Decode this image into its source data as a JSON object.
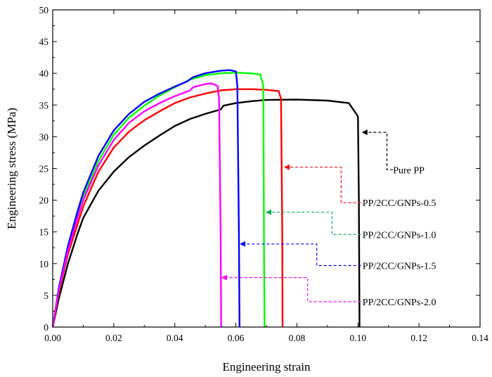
{
  "chart_data": {
    "type": "line",
    "title": "",
    "xlabel": "Engineering strain",
    "ylabel": "Engineering stress (MPa)",
    "xlim": [
      0.0,
      0.14
    ],
    "ylim": [
      0,
      50
    ],
    "x_ticks": [
      "0.00",
      "0.02",
      "0.04",
      "0.06",
      "0.08",
      "0.10",
      "0.12",
      "0.14"
    ],
    "y_ticks": [
      "0",
      "5",
      "10",
      "15",
      "20",
      "25",
      "30",
      "35",
      "40",
      "45",
      "50"
    ],
    "grid": false,
    "legend_position": "right, inside plot with dashed leader arrows",
    "series": [
      {
        "name": "Pure PP",
        "color": "#000000",
        "points": [
          [
            0,
            0
          ],
          [
            0.002,
            4.5
          ],
          [
            0.005,
            10
          ],
          [
            0.008,
            14.5
          ],
          [
            0.01,
            17.2
          ],
          [
            0.015,
            21.5
          ],
          [
            0.02,
            24.5
          ],
          [
            0.025,
            26.8
          ],
          [
            0.03,
            28.6
          ],
          [
            0.035,
            30.2
          ],
          [
            0.04,
            31.7
          ],
          [
            0.045,
            32.8
          ],
          [
            0.05,
            33.6
          ],
          [
            0.055,
            34.3
          ],
          [
            0.056,
            34.9
          ],
          [
            0.06,
            35.3
          ],
          [
            0.065,
            35.6
          ],
          [
            0.07,
            35.8
          ],
          [
            0.08,
            35.85
          ],
          [
            0.09,
            35.7
          ],
          [
            0.097,
            35.3
          ],
          [
            0.1,
            33.2
          ],
          [
            0.1003,
            20
          ],
          [
            0.1005,
            0
          ]
        ]
      },
      {
        "name": "PP/2CC/GNPs-0.5",
        "color": "#ff0000",
        "points": [
          [
            0,
            0
          ],
          [
            0.002,
            5.5
          ],
          [
            0.005,
            11.5
          ],
          [
            0.008,
            16
          ],
          [
            0.01,
            19
          ],
          [
            0.015,
            24.5
          ],
          [
            0.02,
            28.3
          ],
          [
            0.025,
            30.8
          ],
          [
            0.03,
            32.6
          ],
          [
            0.035,
            34
          ],
          [
            0.04,
            35.3
          ],
          [
            0.045,
            36.2
          ],
          [
            0.05,
            36.8
          ],
          [
            0.055,
            37.3
          ],
          [
            0.06,
            37.5
          ],
          [
            0.065,
            37.5
          ],
          [
            0.07,
            37.4
          ],
          [
            0.074,
            37.2
          ],
          [
            0.0748,
            36
          ],
          [
            0.0752,
            15
          ],
          [
            0.0753,
            0
          ]
        ]
      },
      {
        "name": "PP/2CC/GNPs-1.0",
        "color": "#00ff00",
        "points": [
          [
            0,
            0
          ],
          [
            0.002,
            6
          ],
          [
            0.005,
            12.5
          ],
          [
            0.008,
            17.5
          ],
          [
            0.01,
            20.5
          ],
          [
            0.015,
            26.2
          ],
          [
            0.02,
            30.3
          ],
          [
            0.025,
            33
          ],
          [
            0.03,
            34.9
          ],
          [
            0.035,
            36.5
          ],
          [
            0.04,
            37.8
          ],
          [
            0.045,
            39
          ],
          [
            0.05,
            39.7
          ],
          [
            0.055,
            40
          ],
          [
            0.06,
            40.1
          ],
          [
            0.065,
            40
          ],
          [
            0.068,
            39.8
          ],
          [
            0.069,
            38
          ],
          [
            0.0692,
            15
          ],
          [
            0.0694,
            0
          ]
        ]
      },
      {
        "name": "PP/2CC/GNPs-1.5",
        "color": "#0000ff",
        "points": [
          [
            0,
            0
          ],
          [
            0.002,
            6.2
          ],
          [
            0.005,
            12.8
          ],
          [
            0.008,
            18
          ],
          [
            0.01,
            21.2
          ],
          [
            0.015,
            27
          ],
          [
            0.02,
            31
          ],
          [
            0.025,
            33.6
          ],
          [
            0.03,
            35.5
          ],
          [
            0.035,
            36.8
          ],
          [
            0.04,
            37.9
          ],
          [
            0.044,
            38.7
          ],
          [
            0.046,
            39.4
          ],
          [
            0.05,
            40
          ],
          [
            0.055,
            40.4
          ],
          [
            0.058,
            40.5
          ],
          [
            0.06,
            40.3
          ],
          [
            0.0605,
            38
          ],
          [
            0.061,
            15
          ],
          [
            0.0612,
            0
          ]
        ]
      },
      {
        "name": "PP/2CC/GNPs-2.0",
        "color": "#ff00ff",
        "points": [
          [
            0,
            0
          ],
          [
            0.002,
            5.8
          ],
          [
            0.005,
            12
          ],
          [
            0.008,
            17
          ],
          [
            0.01,
            20
          ],
          [
            0.015,
            25.5
          ],
          [
            0.02,
            29.5
          ],
          [
            0.025,
            32.2
          ],
          [
            0.03,
            34
          ],
          [
            0.035,
            35.3
          ],
          [
            0.04,
            36.4
          ],
          [
            0.045,
            37.3
          ],
          [
            0.046,
            37.8
          ],
          [
            0.05,
            38.3
          ],
          [
            0.052,
            38.4
          ],
          [
            0.054,
            38
          ],
          [
            0.0545,
            36
          ],
          [
            0.055,
            15
          ],
          [
            0.0552,
            0
          ]
        ]
      }
    ],
    "annotations": [
      {
        "label": "Pure PP",
        "series": 0,
        "arrow_tip": [
          0.1015,
          30.7
        ],
        "path": [
          [
            0.1095,
            30.7
          ],
          [
            0.1095,
            24.8
          ],
          [
            0.1115,
            24.8
          ]
        ],
        "label_at": [
          0.1115,
          24.8
        ]
      },
      {
        "label": "PP/2CC/GNPs-0.5",
        "series": 1,
        "arrow_tip": [
          0.076,
          25.2
        ],
        "path": [
          [
            0.0945,
            25.2
          ],
          [
            0.0945,
            19.6
          ],
          [
            0.101,
            19.6
          ]
        ],
        "label_at": [
          0.1015,
          19.6
        ]
      },
      {
        "label": "PP/2CC/GNPs-1.0",
        "series": 2,
        "arrow_tip": [
          0.07,
          18.1
        ],
        "path": [
          [
            0.0915,
            18.1
          ],
          [
            0.0915,
            14.6
          ],
          [
            0.101,
            14.6
          ]
        ],
        "label_at": [
          0.1015,
          14.6
        ]
      },
      {
        "label": "PP/2CC/GNPs-1.5",
        "series": 3,
        "arrow_tip": [
          0.0615,
          13.1
        ],
        "path": [
          [
            0.0865,
            13.1
          ],
          [
            0.0865,
            9.7
          ],
          [
            0.101,
            9.7
          ]
        ],
        "label_at": [
          0.1015,
          9.7
        ]
      },
      {
        "label": "PP/2CC/GNPs-2.0",
        "series": 4,
        "arrow_tip": [
          0.0555,
          7.8
        ],
        "path": [
          [
            0.0835,
            7.8
          ],
          [
            0.0835,
            4
          ],
          [
            0.101,
            4
          ]
        ],
        "label_at": [
          0.1015,
          4
        ]
      }
    ]
  }
}
